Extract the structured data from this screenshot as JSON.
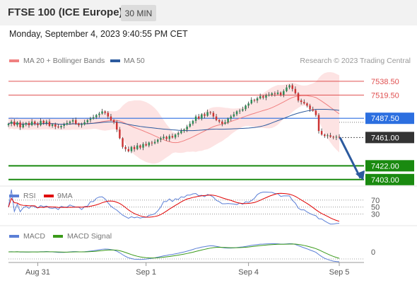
{
  "header": {
    "title": "FTSE 100 (ICE Europe)",
    "timeframe": "30 MIN"
  },
  "datetime": "Monday, September 4, 2023 9:40:55 PM CET",
  "legend": {
    "ma20_label": "MA 20 + Bollinger Bands",
    "ma20_color": "#f08080",
    "ma50_label": "MA 50",
    "ma50_color": "#2c5a9e"
  },
  "credit": "Research © 2023 Trading Central",
  "rsi_panel": {
    "rsi_label": "RSI",
    "rsi_color": "#5b7fd6",
    "ma_label": "9MA",
    "ma_color": "#e00000",
    "levels": [
      "70",
      "50",
      "30"
    ]
  },
  "macd_panel": {
    "macd_label": "MACD",
    "macd_color": "#5b7fd6",
    "signal_label": "MACD Signal",
    "signal_color": "#3a9a1a",
    "zero_label": "0"
  },
  "chart_data": {
    "type": "candlestick",
    "x_ticks": [
      "Aug 31",
      "Sep 1",
      "Sep 4",
      "Sep 5"
    ],
    "ylim": [
      7395,
      7555
    ],
    "levels": [
      {
        "label": "7538.50",
        "value": 7538.5,
        "color": "#e05050",
        "kind": "resistance"
      },
      {
        "label": "7519.50",
        "value": 7519.5,
        "color": "#e05050",
        "kind": "resistance"
      },
      {
        "label": "7487.50",
        "value": 7487.5,
        "color": "#2c6fe0",
        "kind": "pivot"
      },
      {
        "label": "7461.00",
        "value": 7461.0,
        "color": "#333333",
        "kind": "last"
      },
      {
        "label": "7422.00",
        "value": 7422.0,
        "color": "#1a8a10",
        "kind": "target"
      },
      {
        "label": "7403.00",
        "value": 7403.0,
        "color": "#1a8a10",
        "kind": "target"
      }
    ],
    "forecast": "down",
    "close": [
      7480,
      7483,
      7478,
      7482,
      7475,
      7479,
      7481,
      7478,
      7483,
      7480,
      7478,
      7484,
      7481,
      7483,
      7477,
      7479,
      7476,
      7475,
      7477,
      7479,
      7481,
      7483,
      7485,
      7480,
      7478,
      7479,
      7482,
      7485,
      7487,
      7489,
      7492,
      7494,
      7497,
      7495,
      7490,
      7485,
      7482,
      7472,
      7460,
      7448,
      7445,
      7442,
      7448,
      7445,
      7450,
      7447,
      7452,
      7450,
      7454,
      7453,
      7455,
      7458,
      7460,
      7462,
      7459,
      7463,
      7461,
      7465,
      7467,
      7470,
      7472,
      7476,
      7480,
      7484,
      7490,
      7487,
      7493,
      7491,
      7496,
      7495,
      7490,
      7485,
      7483,
      7480,
      7482,
      7487,
      7490,
      7493,
      7497,
      7498,
      7500,
      7505,
      7508,
      7513,
      7512,
      7515,
      7518,
      7516,
      7519,
      7520,
      7522,
      7521,
      7523,
      7520,
      7525,
      7530,
      7533,
      7528,
      7522,
      7512,
      7510,
      7508,
      7505,
      7500,
      7498,
      7492,
      7470,
      7465,
      7463,
      7464,
      7462,
      7461,
      7462,
      7461
    ]
  }
}
